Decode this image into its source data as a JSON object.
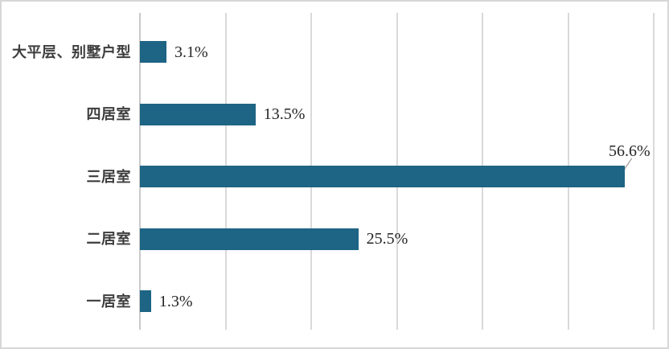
{
  "chart_data": {
    "type": "bar",
    "orientation": "horizontal",
    "title": "",
    "categories": [
      "大平层、别墅户型",
      "四居室",
      "三居室",
      "二居室",
      "一居室"
    ],
    "values": [
      3.1,
      13.5,
      56.6,
      25.5,
      1.3
    ],
    "value_labels": [
      "3.1%",
      "13.5%",
      "56.6%",
      "25.5%",
      "1.3%"
    ],
    "xlim": [
      0,
      60
    ],
    "gridline_step": 10,
    "grid": "vertical",
    "legend": "none",
    "axis_tick_labels": "none",
    "callout_row": 2,
    "colors": {
      "bar": "#1E6484",
      "gridline": "#D9D9D9",
      "axis": "#C9C9C9",
      "category_label": "#3D3D3D",
      "value_label": "#262626",
      "leader_line": "#A6A6A6",
      "frame_border": "#D7D7D7",
      "background": "#FFFFFF"
    }
  }
}
